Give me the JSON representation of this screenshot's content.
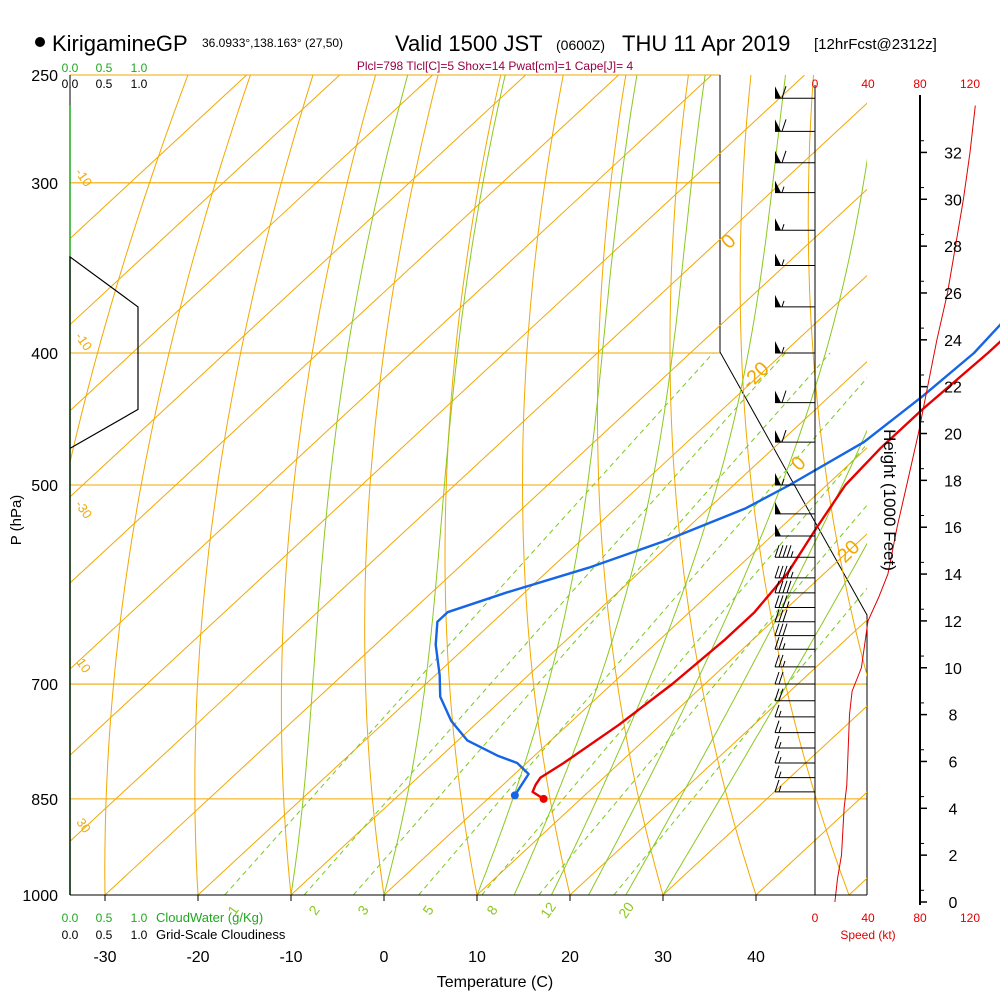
{
  "header": {
    "station": "KirigamineGP",
    "coords": "36.0933°,138.163° (27,50)",
    "valid_prefix": "Valid 1500 JST",
    "valid_utc": "(0600Z)",
    "valid_date": "THU 11 Apr 2019",
    "forecast": "[12hrFcst@2312z]",
    "indices": "Plcl=798 Tlcl[C]=5 Shox=14 Pwat[cm]=1 Cape[J]= 4"
  },
  "labels": {
    "ylabel": "P (hPa)",
    "xlabel": "Temperature (C)",
    "height_label": "Height (1000 Feet)",
    "speed_label": "Speed (kt)",
    "cloudwater_label": "CloudWater (g/Kg)",
    "cloudiness_label": "Grid-Scale Cloudiness"
  },
  "colors": {
    "temperature": "#e80000",
    "dewpoint": "#1565e6",
    "isobar": "#f2a800",
    "mixing_ratio": "#7ac81e",
    "moist_adiabat": "#8cc820",
    "cloudwater": "#1fa81f",
    "wind_speed": "#e00000",
    "indices": "#990044"
  },
  "chart_data": {
    "type": "line",
    "title": "KirigamineGP Valid 1500 JST (0600Z) THU 11 Apr 2019 [12hrFcst@2312z]",
    "xlabel": "Temperature (C)",
    "ylabel": "P (hPa)",
    "xlim": [
      -35,
      45
    ],
    "ylim": [
      1000,
      250
    ],
    "y_scale": "log",
    "pressure_ticks": [
      "250",
      "300",
      "400",
      "500",
      "700",
      "850",
      "1000"
    ],
    "temperature_ticks": [
      "-30",
      "-20",
      "-10",
      "0",
      "10",
      "20",
      "30",
      "40"
    ],
    "isotherm_labels": [
      "-10",
      "0",
      "-10",
      "-20",
      "-30",
      "0",
      "10",
      "20",
      "30"
    ],
    "mixing_ratio_labels": [
      "1",
      "2",
      "3",
      "5",
      "8",
      "12",
      "20"
    ],
    "grid": true,
    "series": [
      {
        "points": [
          [
            6,
            850
          ],
          [
            4,
            840
          ],
          [
            3.5,
            830
          ],
          [
            3.2,
            820
          ],
          [
            4,
            800
          ],
          [
            5.5,
            750
          ],
          [
            6.5,
            700
          ],
          [
            7,
            650
          ],
          [
            7,
            620
          ],
          [
            6,
            580
          ],
          [
            4,
            540
          ],
          [
            2,
            500
          ],
          [
            1.5,
            470
          ],
          [
            1.5,
            440
          ],
          [
            2,
            400
          ],
          [
            2,
            370
          ],
          [
            0,
            340
          ],
          [
            -2.5,
            300
          ],
          [
            -5,
            270
          ],
          [
            -6.5,
            260
          ]
        ]
      },
      {
        "points": [
          [
            2.5,
            845
          ],
          [
            2,
            830
          ],
          [
            1.5,
            815
          ],
          [
            -1,
            800
          ],
          [
            -4,
            790
          ],
          [
            -9,
            770
          ],
          [
            -13,
            745
          ],
          [
            -17,
            715
          ],
          [
            -19.5,
            690
          ],
          [
            -23.5,
            655
          ],
          [
            -26,
            630
          ],
          [
            -26,
            620
          ],
          [
            -22,
            600
          ],
          [
            -16,
            575
          ],
          [
            -11,
            550
          ],
          [
            -6,
            520
          ],
          [
            -4,
            500
          ],
          [
            -1,
            465
          ],
          [
            0,
            430
          ],
          [
            0.5,
            400
          ],
          [
            0,
            380
          ],
          [
            -2,
            340
          ],
          [
            -5,
            300
          ],
          [
            -9,
            270
          ],
          [
            -11,
            260
          ]
        ]
      }
    ],
    "cloudiness": {
      "ticks": [
        "0.0",
        "0.5",
        "1.0"
      ],
      "cloudwater_ticks": [
        "0.0",
        "0.5",
        "1.0"
      ],
      "profile": [
        [
          0,
          1000
        ],
        [
          0,
          340
        ],
        [
          0.38,
          370
        ],
        [
          0.38,
          440
        ],
        [
          0,
          470
        ]
      ]
    },
    "height_axis": {
      "label": "Height (1000 Feet)",
      "ticks": [
        "0",
        "2",
        "4",
        "6",
        "8",
        "10",
        "12",
        "14",
        "16",
        "18",
        "20",
        "22",
        "24",
        "26",
        "28",
        "30",
        "32"
      ]
    },
    "wind_speed": {
      "label": "Speed (kt)",
      "ticks": [
        "0",
        "40",
        "80",
        "120"
      ],
      "profile": [
        [
          15,
          0
        ],
        [
          17,
          1
        ],
        [
          20,
          2
        ],
        [
          22,
          4
        ],
        [
          24,
          5
        ],
        [
          26,
          8
        ],
        [
          28,
          9
        ],
        [
          35,
          10
        ],
        [
          40,
          12
        ],
        [
          48,
          13
        ],
        [
          55,
          14
        ],
        [
          62,
          16
        ],
        [
          70,
          18
        ],
        [
          78,
          20
        ],
        [
          85,
          22
        ],
        [
          92,
          24
        ],
        [
          100,
          26
        ],
        [
          106,
          28
        ],
        [
          112,
          30
        ],
        [
          117,
          32
        ],
        [
          121,
          34
        ]
      ]
    },
    "wind_barbs": [
      {
        "p": 260,
        "speed": 60
      },
      {
        "p": 275,
        "speed": 60
      },
      {
        "p": 290,
        "speed": 60
      },
      {
        "p": 305,
        "speed": 55
      },
      {
        "p": 325,
        "speed": 55
      },
      {
        "p": 345,
        "speed": 55
      },
      {
        "p": 370,
        "speed": 55
      },
      {
        "p": 400,
        "speed": 55
      },
      {
        "p": 435,
        "speed": 60
      },
      {
        "p": 465,
        "speed": 60
      },
      {
        "p": 500,
        "speed": 55
      },
      {
        "p": 525,
        "speed": 50
      },
      {
        "p": 545,
        "speed": 50
      },
      {
        "p": 565,
        "speed": 45
      },
      {
        "p": 585,
        "speed": 45
      },
      {
        "p": 600,
        "speed": 40
      },
      {
        "p": 615,
        "speed": 35
      },
      {
        "p": 630,
        "speed": 30
      },
      {
        "p": 645,
        "speed": 30
      },
      {
        "p": 660,
        "speed": 25
      },
      {
        "p": 680,
        "speed": 25
      },
      {
        "p": 700,
        "speed": 20
      },
      {
        "p": 720,
        "speed": 20
      },
      {
        "p": 740,
        "speed": 15
      },
      {
        "p": 760,
        "speed": 15
      },
      {
        "p": 780,
        "speed": 15
      },
      {
        "p": 800,
        "speed": 15
      },
      {
        "p": 820,
        "speed": 15
      },
      {
        "p": 840,
        "speed": 15
      }
    ]
  }
}
